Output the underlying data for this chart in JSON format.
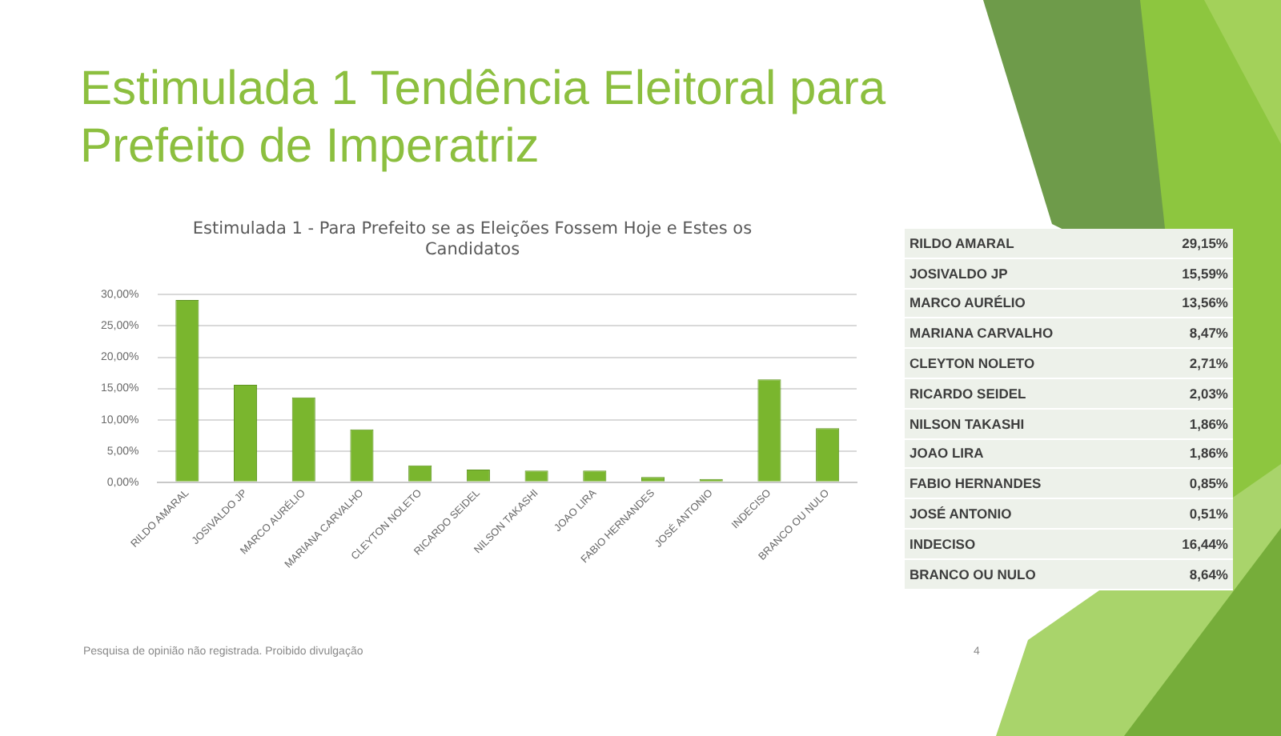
{
  "chart_data": [
    {
      "type": "bar",
      "title": "Estimulada 1 Tendência Eleitoral para Prefeito de Imperatriz",
      "subtitle": "Estimulada 1 - Para Prefeito se as Eleições Fossem Hoje e Estes os Candidatos",
      "categories": [
        "RILDO AMARAL",
        "JOSIVALDO JP",
        "MARCO AURÉLIO",
        "MARIANA CARVALHO",
        "CLEYTON NOLETO",
        "RICARDO SEIDEL",
        "NILSON TAKASHI",
        "JOAO LIRA",
        "FABIO HERNANDES",
        "JOSÉ ANTONIO",
        "INDECISO",
        "BRANCO OU NULO"
      ],
      "values": [
        29.15,
        15.59,
        13.56,
        8.47,
        2.71,
        2.03,
        1.86,
        1.86,
        0.85,
        0.51,
        16.44,
        8.64
      ],
      "color": "#7ab62e",
      "ylim": [
        0,
        30
      ],
      "yticks": [
        {
          "value": 0,
          "label": "0,00%"
        },
        {
          "value": 5,
          "label": "5,00%"
        },
        {
          "value": 10,
          "label": "10,00%"
        },
        {
          "value": 15,
          "label": "15,00%"
        },
        {
          "value": 20,
          "label": "20,00%"
        },
        {
          "value": 25,
          "label": "25,00%"
        },
        {
          "value": 30,
          "label": "30,00%"
        }
      ],
      "grid": "y",
      "annotations": [
        "Pesquisa de opinião não registrada. Proibido divulgação",
        "4"
      ]
    },
    {
      "type": "other",
      "categories": [
        "RILDO AMARAL",
        "JOSIVALDO JP",
        "MARCO AURÉLIO",
        "MARIANA CARVALHO",
        "CLEYTON NOLETO",
        "RICARDO SEIDEL",
        "NILSON TAKASHI",
        "JOAO LIRA",
        "FABIO HERNANDES",
        "JOSÉ ANTONIO",
        "INDECISO",
        "BRANCO OU NULO"
      ],
      "value_labels": [
        "29,15%",
        "15,59%",
        "13,56%",
        "8,47%",
        "2,71%",
        "2,03%",
        "1,86%",
        "1,86%",
        "0,85%",
        "0,51%",
        "16,44%",
        "8,64%"
      ]
    }
  ]
}
